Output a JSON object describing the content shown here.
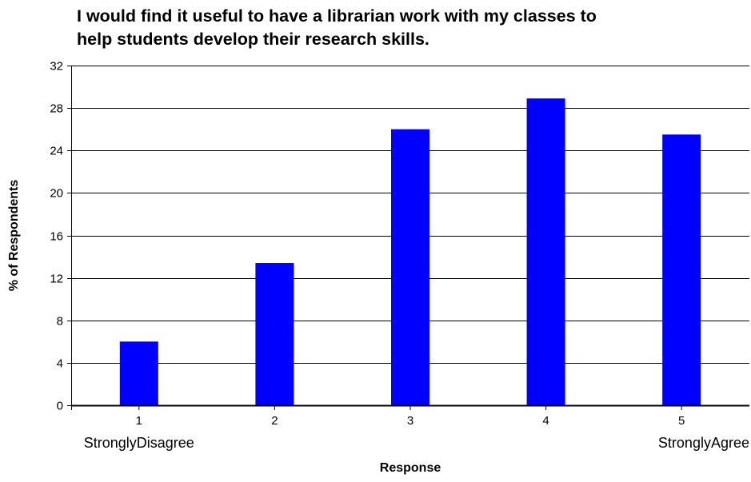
{
  "chart_data": {
    "type": "bar",
    "title_lines": [
      "I would find it useful to have a librarian work with my classes to",
      "help students develop their research skills."
    ],
    "categories": [
      "1",
      "2",
      "3",
      "4",
      "5"
    ],
    "category_sublabels": [
      "StronglyDisagree",
      "",
      "",
      "",
      "StronglyAgree"
    ],
    "values": [
      6.0,
      13.4,
      26.0,
      28.9,
      25.5
    ],
    "xlabel": "Response",
    "ylabel": "% of Respondents",
    "ylim": [
      0,
      32
    ],
    "yticks": [
      0,
      4,
      8,
      12,
      16,
      20,
      24,
      28,
      32
    ],
    "grid": true,
    "bar_color": "#0000ff"
  }
}
